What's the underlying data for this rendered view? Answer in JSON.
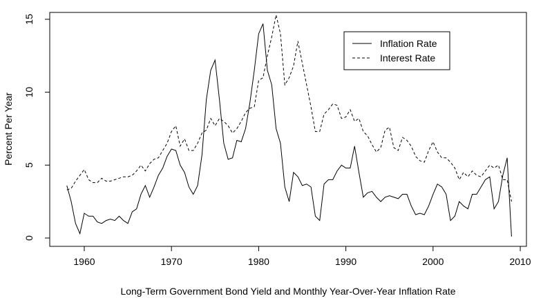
{
  "chart_data": {
    "type": "line",
    "xlabel": "Long-Term Government Bond Yield and Monthly Year-Over-Year Inflation Rate",
    "ylabel": "Percent Per Year",
    "x": [
      1958,
      1958.5,
      1959,
      1959.5,
      1960,
      1960.5,
      1961,
      1961.5,
      1962,
      1962.5,
      1963,
      1963.5,
      1964,
      1964.5,
      1965,
      1965.5,
      1966,
      1966.5,
      1967,
      1967.5,
      1968,
      1968.5,
      1969,
      1969.5,
      1970,
      1970.5,
      1971,
      1971.5,
      1972,
      1972.5,
      1973,
      1973.5,
      1974,
      1974.5,
      1975,
      1975.5,
      1976,
      1976.5,
      1977,
      1977.5,
      1978,
      1978.5,
      1979,
      1979.5,
      1980,
      1980.5,
      1981,
      1981.5,
      1982,
      1982.5,
      1983,
      1983.5,
      1984,
      1984.5,
      1985,
      1985.5,
      1986,
      1986.5,
      1987,
      1987.5,
      1988,
      1988.5,
      1989,
      1989.5,
      1990,
      1990.5,
      1991,
      1991.5,
      1992,
      1992.5,
      1993,
      1993.5,
      1994,
      1994.5,
      1995,
      1995.5,
      1996,
      1996.5,
      1997,
      1997.5,
      1998,
      1998.5,
      1999,
      1999.5,
      2000,
      2000.5,
      2001,
      2001.5,
      2002,
      2002.5,
      2003,
      2003.5,
      2004,
      2004.5,
      2005,
      2005.5,
      2006,
      2006.5,
      2007,
      2007.5,
      2008,
      2008.5,
      2009
    ],
    "series": [
      {
        "name": "Inflation Rate",
        "color": "#000000",
        "line_style": "solid",
        "values": [
          3.6,
          2.5,
          1.0,
          0.3,
          1.7,
          1.5,
          1.5,
          1.1,
          1.0,
          1.2,
          1.3,
          1.2,
          1.5,
          1.2,
          1.0,
          1.8,
          2.0,
          3.0,
          3.6,
          2.8,
          3.5,
          4.3,
          4.8,
          5.6,
          6.1,
          6.0,
          5.0,
          4.5,
          3.5,
          3.0,
          3.6,
          5.7,
          9.5,
          11.5,
          12.2,
          9.5,
          6.5,
          5.4,
          5.5,
          6.7,
          6.6,
          7.5,
          9.3,
          11.5,
          14.0,
          14.7,
          11.5,
          10.5,
          7.5,
          6.5,
          3.5,
          2.5,
          4.5,
          4.2,
          3.6,
          3.7,
          3.5,
          1.5,
          1.2,
          3.7,
          4.0,
          4.0,
          4.6,
          5.0,
          4.8,
          4.8,
          6.3,
          4.5,
          2.8,
          3.1,
          3.2,
          2.8,
          2.5,
          2.8,
          2.9,
          2.8,
          2.7,
          3.0,
          3.0,
          2.2,
          1.6,
          1.7,
          1.6,
          2.2,
          3.0,
          3.7,
          3.5,
          3.0,
          1.2,
          1.5,
          2.5,
          2.2,
          2.0,
          3.0,
          3.0,
          3.5,
          4.0,
          4.2,
          2.0,
          2.5,
          4.3,
          5.5,
          0.1
        ]
      },
      {
        "name": "Interest Rate",
        "color": "#000000",
        "line_style": "dashed",
        "values": [
          3.3,
          3.4,
          3.9,
          4.3,
          4.7,
          4.0,
          3.8,
          3.8,
          4.1,
          3.9,
          3.9,
          4.0,
          4.1,
          4.2,
          4.2,
          4.3,
          4.6,
          5.0,
          4.6,
          5.1,
          5.4,
          5.5,
          6.0,
          6.5,
          7.3,
          7.7,
          6.3,
          6.8,
          6.0,
          6.0,
          6.5,
          7.2,
          7.4,
          8.2,
          7.7,
          8.2,
          8.0,
          7.7,
          7.2,
          7.5,
          8.0,
          8.6,
          8.9,
          9.0,
          10.8,
          11.0,
          12.5,
          13.8,
          15.3,
          14.0,
          10.5,
          11.0,
          11.8,
          13.5,
          12.0,
          10.5,
          9.0,
          7.3,
          7.3,
          8.5,
          8.8,
          9.2,
          9.1,
          8.2,
          8.3,
          8.8,
          8.0,
          8.2,
          7.3,
          7.0,
          6.4,
          5.9,
          6.2,
          7.4,
          7.6,
          6.2,
          6.0,
          6.9,
          6.7,
          6.3,
          5.6,
          5.3,
          5.2,
          6.0,
          6.6,
          5.9,
          5.5,
          5.5,
          5.2,
          4.8,
          4.0,
          4.5,
          4.2,
          4.6,
          4.3,
          4.2,
          4.6,
          5.0,
          4.8,
          5.0,
          4.0,
          4.0,
          2.5
        ]
      }
    ],
    "xlim": [
      1956.04,
      2010.71
    ],
    "xticks": [
      1960,
      1970,
      1980,
      1990,
      2000,
      2010
    ],
    "ylim": [
      -0.57,
      15.47
    ],
    "yticks": [
      0,
      5,
      10,
      15
    ],
    "legend": "top-right"
  }
}
